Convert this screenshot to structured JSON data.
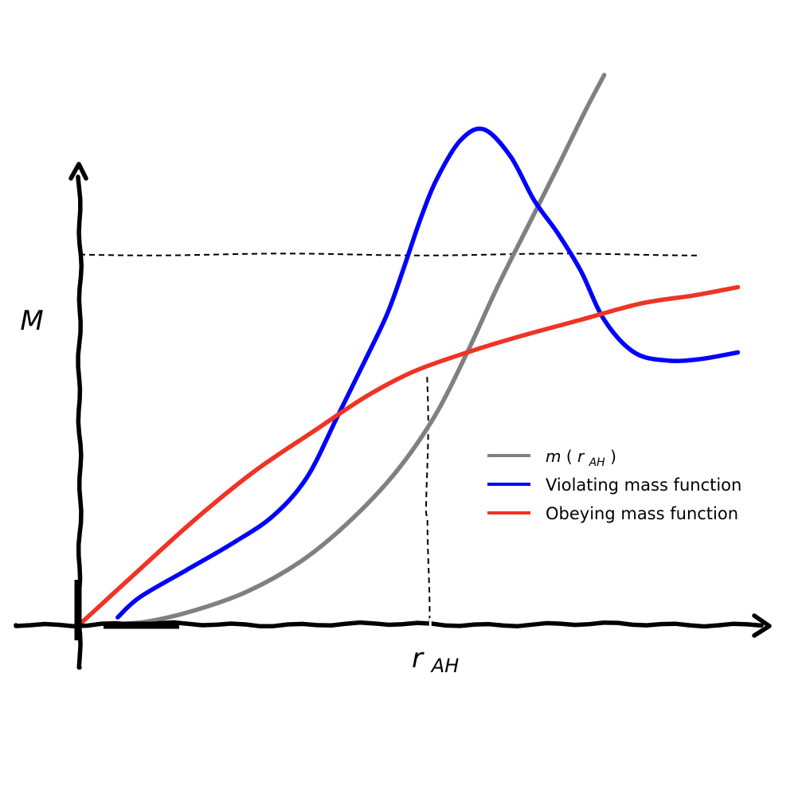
{
  "chart_data": {
    "type": "line",
    "title": "",
    "xlabel": "",
    "ylabel": "",
    "x_range": [
      0,
      10
    ],
    "y_range": [
      0,
      10
    ],
    "grid": false,
    "legend_position": "right",
    "annotations": {
      "y_marker_label": "M",
      "y_marker_value": 6.8,
      "x_marker_label_main": "r",
      "x_marker_label_sub": "AH",
      "x_marker_value": 5.2
    },
    "series": [
      {
        "name_main": "m",
        "name_open": " (",
        "name_r": "r",
        "name_sub": "AH",
        "name_close": ")",
        "color": "#808080",
        "points": [
          [
            0.43,
            0.0
          ],
          [
            1.0,
            0.05
          ],
          [
            1.7,
            0.25
          ],
          [
            2.5,
            0.6
          ],
          [
            3.3,
            1.15
          ],
          [
            4.0,
            1.85
          ],
          [
            4.7,
            2.75
          ],
          [
            5.3,
            3.8
          ],
          [
            5.8,
            5.0
          ],
          [
            6.25,
            6.2
          ],
          [
            6.7,
            7.3
          ],
          [
            7.15,
            8.4
          ],
          [
            7.55,
            9.4
          ],
          [
            7.85,
            10.1
          ]
        ]
      },
      {
        "name": "Violating mass function",
        "color": "#0000ff",
        "points": [
          [
            0.57,
            0.13
          ],
          [
            0.9,
            0.5
          ],
          [
            1.6,
            1.0
          ],
          [
            2.3,
            1.5
          ],
          [
            2.9,
            2.0
          ],
          [
            3.4,
            2.7
          ],
          [
            3.85,
            3.8
          ],
          [
            4.25,
            4.8
          ],
          [
            4.6,
            5.7
          ],
          [
            4.85,
            6.55
          ],
          [
            5.1,
            7.45
          ],
          [
            5.35,
            8.2
          ],
          [
            5.7,
            8.9
          ],
          [
            6.05,
            9.1
          ],
          [
            6.45,
            8.6
          ],
          [
            6.8,
            7.8
          ],
          [
            7.15,
            7.2
          ],
          [
            7.5,
            6.5
          ],
          [
            7.85,
            5.6
          ],
          [
            8.3,
            5.0
          ],
          [
            8.8,
            4.85
          ],
          [
            9.3,
            4.88
          ],
          [
            9.85,
            5.0
          ]
        ]
      },
      {
        "name": "Obeying mass function",
        "color": "#f03325",
        "points": [
          [
            0.0,
            0.0
          ],
          [
            0.8,
            0.9
          ],
          [
            1.7,
            1.9
          ],
          [
            2.6,
            2.8
          ],
          [
            3.5,
            3.55
          ],
          [
            4.3,
            4.2
          ],
          [
            5.0,
            4.65
          ],
          [
            5.8,
            5.0
          ],
          [
            6.6,
            5.3
          ],
          [
            7.5,
            5.6
          ],
          [
            8.4,
            5.9
          ],
          [
            9.2,
            6.05
          ],
          [
            9.85,
            6.2
          ]
        ]
      }
    ]
  }
}
